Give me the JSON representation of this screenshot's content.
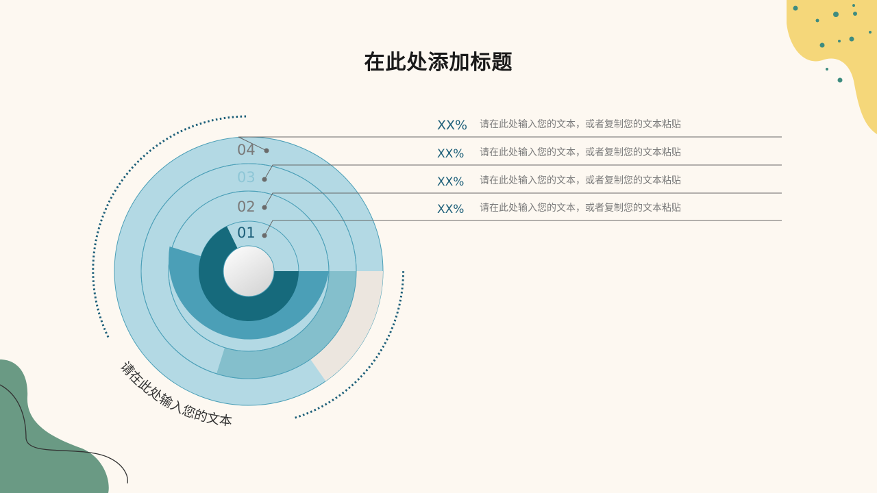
{
  "title": "在此处添加标题",
  "caption": "请在此处输入您的文本",
  "colors": {
    "background": "#fdf8f1",
    "ring_light": "#b3d9e4",
    "ring_mid": "#84bfcc",
    "ring_teal": "#4b9fb7",
    "ring_dark": "#166a7c",
    "ring_empty": "#ece6df",
    "accent_text": "#1d5f79",
    "yellow_blob": "#f5d77a",
    "green_blob": "#6a9a84",
    "dots": "#3e8c80"
  },
  "items": [
    {
      "label": "04",
      "percent_text": "XX%",
      "text": "请在此处输入您的文本，或者复制您的文本粘贴",
      "label_color": "#7a7a7a"
    },
    {
      "label": "03",
      "percent_text": "XX%",
      "text": "请在此处输入您的文本，或者复制您的文本粘贴",
      "label_color": "#8ec6d6"
    },
    {
      "label": "02",
      "percent_text": "XX%",
      "text": "请在此处输入您的文本，或者复制您的文本粘贴",
      "label_color": "#7a7a7a"
    },
    {
      "label": "01",
      "percent_text": "XX%",
      "text": "请在此处输入您的文本，或者复制您的文本粘贴",
      "label_color": "#1d5f79"
    }
  ]
}
